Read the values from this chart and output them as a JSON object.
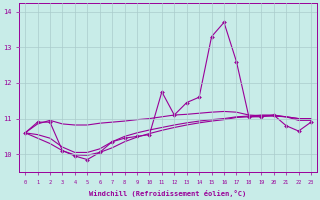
{
  "xlabel": "Windchill (Refroidissement éolien,°C)",
  "bg_color": "#c8ece8",
  "line_color": "#990099",
  "grid_color": "#aacccc",
  "x": [
    0,
    1,
    2,
    3,
    4,
    5,
    6,
    7,
    8,
    9,
    10,
    11,
    12,
    13,
    14,
    15,
    16,
    17,
    18,
    19,
    20,
    21,
    22,
    23
  ],
  "line_main": [
    10.6,
    10.9,
    10.9,
    10.1,
    9.95,
    9.85,
    10.05,
    10.35,
    10.45,
    10.5,
    10.55,
    11.75,
    11.1,
    11.45,
    11.6,
    13.3,
    13.7,
    12.6,
    11.05,
    11.05,
    11.1,
    10.8,
    10.65,
    10.9
  ],
  "line_upper": [
    10.6,
    10.85,
    10.95,
    10.85,
    10.82,
    10.82,
    10.87,
    10.9,
    10.93,
    10.97,
    11.0,
    11.05,
    11.1,
    11.12,
    11.15,
    11.18,
    11.2,
    11.18,
    11.1,
    11.08,
    11.07,
    11.05,
    10.95,
    10.95
  ],
  "line_mid": [
    10.6,
    10.55,
    10.45,
    10.2,
    10.05,
    10.05,
    10.15,
    10.35,
    10.5,
    10.6,
    10.68,
    10.75,
    10.82,
    10.88,
    10.93,
    10.97,
    11.0,
    11.05,
    11.07,
    11.1,
    11.1,
    11.05,
    11.0,
    11.0
  ],
  "line_lower": [
    10.6,
    10.45,
    10.3,
    10.1,
    9.98,
    9.97,
    10.05,
    10.18,
    10.35,
    10.48,
    10.58,
    10.67,
    10.75,
    10.82,
    10.88,
    10.93,
    10.97,
    11.03,
    11.05,
    11.07,
    11.08,
    11.05,
    11.0,
    11.0
  ],
  "ylim": [
    9.5,
    14.25
  ],
  "yticks": [
    10,
    11,
    12,
    13,
    14
  ],
  "xlim": [
    -0.5,
    23.5
  ]
}
